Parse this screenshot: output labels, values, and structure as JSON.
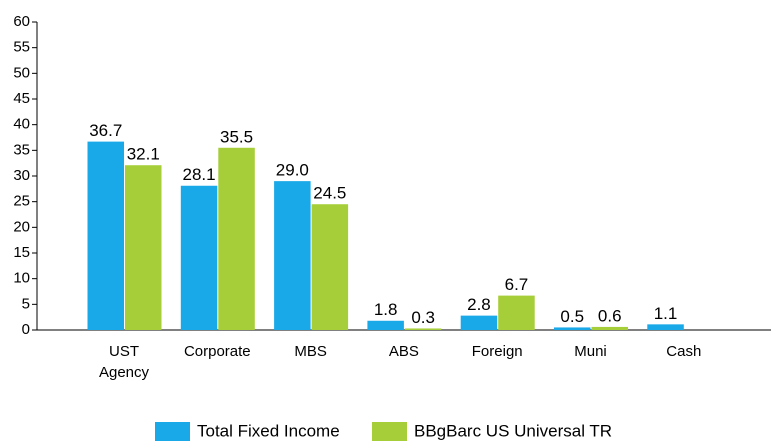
{
  "chart_data": {
    "type": "bar",
    "categories": [
      "UST Agency",
      "Corporate",
      "MBS",
      "ABS",
      "Foreign",
      "Muni",
      "Cash"
    ],
    "series": [
      {
        "name": "Total Fixed Income",
        "color": "#1aa9e8",
        "values": [
          36.7,
          28.1,
          29.0,
          1.8,
          2.8,
          0.5,
          1.1
        ],
        "value_labels": [
          "36.7",
          "28.1",
          "29.0",
          "1.8",
          "2.8",
          "0.5",
          "1.1"
        ]
      },
      {
        "name": "BBgBarc US Universal TR",
        "color": "#a6ce39",
        "values": [
          32.1,
          35.5,
          24.5,
          0.3,
          6.7,
          0.6,
          null
        ],
        "value_labels": [
          "32.1",
          "35.5",
          "24.5",
          "0.3",
          "6.7",
          "0.6",
          null
        ]
      }
    ],
    "ylim": [
      0,
      60
    ],
    "yticks": [
      0,
      5,
      10,
      15,
      20,
      25,
      30,
      35,
      40,
      45,
      50,
      55,
      60
    ]
  }
}
